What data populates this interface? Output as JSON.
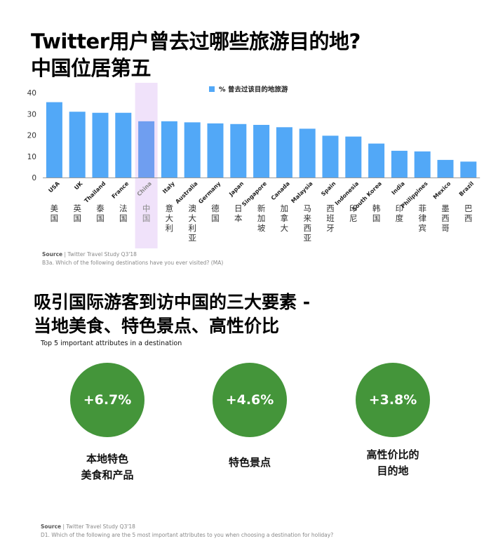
{
  "top_section": {
    "title": "Twitter用户曾去过哪些旅游目的地?\n中国位居第五",
    "source_label": "Source",
    "source_text": "| Twitter Travel Study Q3'18",
    "question": "B3a. Which of the following destinations have you ever visited? (MA)"
  },
  "bottom_section": {
    "title": "吸引国际游客到访中国的三大要素 -\n当地美食、特色景点、高性价比",
    "subtitle": "Top 5 important attributes in a destination",
    "attributes": [
      {
        "value": "+6.7%",
        "label": "本地特色\n美食和产品"
      },
      {
        "value": "+4.6%",
        "label": "特色景点"
      },
      {
        "value": "+3.8%",
        "label": "高性价比的\n目的地"
      }
    ],
    "source_label": "Source",
    "source_text": "| Twitter Travel Study Q3'18",
    "question": "D1. Which of the following are the 5 most important attributes to you when choosing a destination for holiday?"
  },
  "chart_data": {
    "type": "bar",
    "categories": [
      "USA",
      "UK",
      "Thailand",
      "France",
      "China",
      "Italy",
      "Australia",
      "Germany",
      "Japan",
      "Singapore",
      "Canada",
      "Malaysia",
      "Spain",
      "Indonesia",
      "South Korea",
      "India",
      "Philippines",
      "Mexico",
      "Brazil"
    ],
    "categories_zh": [
      "美国",
      "英国",
      "泰国",
      "法国",
      "中国",
      "意大利",
      "澳大利亚",
      "德国",
      "日本",
      "新加坡",
      "加拿大",
      "马来西亚",
      "西班牙",
      "印尼",
      "韩国",
      "印度",
      "菲律宾",
      "墨西哥",
      "巴西"
    ],
    "series": [
      {
        "name": "% 曾去过该目的地旅游",
        "values": [
          35.5,
          31,
          30.5,
          30.5,
          26.5,
          26.5,
          26,
          25.5,
          25.2,
          24.8,
          23.7,
          23,
          19.7,
          19.3,
          16,
          12.6,
          12.3,
          8.3,
          7.5
        ]
      }
    ],
    "highlight": "China",
    "yticks": [
      0,
      10,
      20,
      30,
      40
    ],
    "ylim": [
      0,
      40
    ],
    "legend_position": "top-center",
    "grid": false,
    "colors": {
      "bar": "#52a8f7",
      "highlight_bar": "#6f9ef0",
      "highlight_band": "#f0e2fa",
      "axis": "#9a9a9a"
    }
  }
}
